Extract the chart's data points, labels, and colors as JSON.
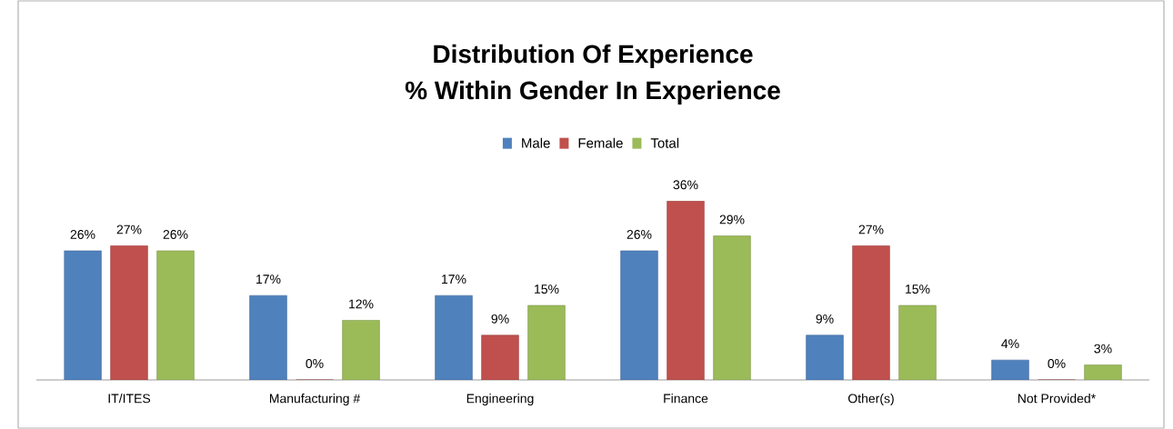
{
  "chart_data": {
    "type": "bar",
    "title": "Distribution Of Experience",
    "subtitle": "% Within Gender In Experience",
    "categories": [
      "IT/ITES",
      "Manufacturing #",
      "Engineering",
      "Finance",
      "Other(s)",
      "Not Provided*"
    ],
    "series": [
      {
        "name": "Male",
        "color": "#4f81bd",
        "values": [
          26,
          17,
          17,
          26,
          9,
          4
        ],
        "value_labels": [
          "26%",
          "17%",
          "17%",
          "26%",
          "9%",
          "4%"
        ]
      },
      {
        "name": "Female",
        "color": "#c0504d",
        "values": [
          27,
          0,
          9,
          36,
          27,
          0
        ],
        "value_labels": [
          "27%",
          "0%",
          "9%",
          "36%",
          "27%",
          "0%"
        ]
      },
      {
        "name": "Total",
        "color": "#9bbb59",
        "values": [
          26,
          12,
          15,
          29,
          15,
          3
        ],
        "value_labels": [
          "26%",
          "12%",
          "15%",
          "29%",
          "15%",
          "3%"
        ]
      }
    ],
    "legend": "top"
  }
}
